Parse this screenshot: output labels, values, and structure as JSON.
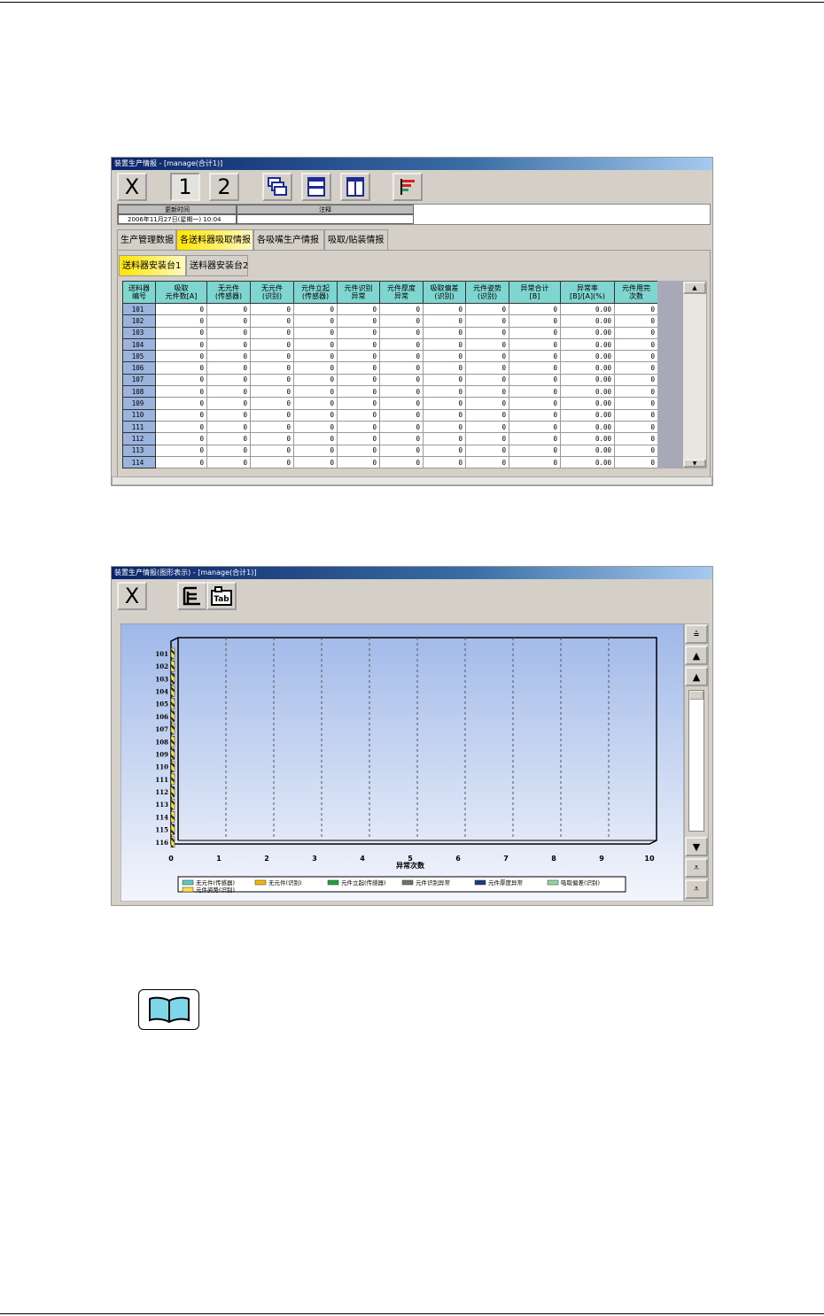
{
  "window1": {
    "title": "装置生产情报 - [manage(合计1)]",
    "toolbar": {
      "close": "X",
      "page1": "1",
      "page2": "2"
    },
    "info": {
      "update_time_label": "更新时间",
      "update_time_value": "2006年11月27日(星期一) 10:04",
      "note_label": "注释"
    },
    "tabs": [
      "生产管理数据",
      "各送料器吸取情报",
      "各吸嘴生产情报",
      "吸取/贴装情报"
    ],
    "active_tab": 1,
    "subtabs": [
      "送料器安装台1",
      "送料器安装台2"
    ],
    "active_subtab": 0,
    "columns": [
      [
        "送料器",
        "编号"
      ],
      [
        "吸取",
        "元件数[A]"
      ],
      [
        "无元件",
        "(传感器)"
      ],
      [
        "无元件",
        "(识别)"
      ],
      [
        "元件立起",
        "(传感器)"
      ],
      [
        "元件识别",
        "异常"
      ],
      [
        "元件厚度",
        "异常"
      ],
      [
        "吸取偏差",
        "(识别)"
      ],
      [
        "元件姿势",
        "(识别)"
      ],
      [
        "异常合计",
        "[B]"
      ],
      [
        "异常率",
        "[B]/[A](%)"
      ],
      [
        "元件用完",
        "次数"
      ]
    ],
    "rows": [
      [
        "101",
        "0",
        "0",
        "0",
        "0",
        "0",
        "0",
        "0",
        "0",
        "0",
        "0.00",
        "0"
      ],
      [
        "102",
        "0",
        "0",
        "0",
        "0",
        "0",
        "0",
        "0",
        "0",
        "0",
        "0.00",
        "0"
      ],
      [
        "103",
        "0",
        "0",
        "0",
        "0",
        "0",
        "0",
        "0",
        "0",
        "0",
        "0.00",
        "0"
      ],
      [
        "104",
        "0",
        "0",
        "0",
        "0",
        "0",
        "0",
        "0",
        "0",
        "0",
        "0.00",
        "0"
      ],
      [
        "105",
        "0",
        "0",
        "0",
        "0",
        "0",
        "0",
        "0",
        "0",
        "0",
        "0.00",
        "0"
      ],
      [
        "106",
        "0",
        "0",
        "0",
        "0",
        "0",
        "0",
        "0",
        "0",
        "0",
        "0.00",
        "0"
      ],
      [
        "107",
        "0",
        "0",
        "0",
        "0",
        "0",
        "0",
        "0",
        "0",
        "0",
        "0.00",
        "0"
      ],
      [
        "108",
        "0",
        "0",
        "0",
        "0",
        "0",
        "0",
        "0",
        "0",
        "0",
        "0.00",
        "0"
      ],
      [
        "109",
        "0",
        "0",
        "0",
        "0",
        "0",
        "0",
        "0",
        "0",
        "0",
        "0.00",
        "0"
      ],
      [
        "110",
        "0",
        "0",
        "0",
        "0",
        "0",
        "0",
        "0",
        "0",
        "0",
        "0.00",
        "0"
      ],
      [
        "111",
        "0",
        "0",
        "0",
        "0",
        "0",
        "0",
        "0",
        "0",
        "0",
        "0.00",
        "0"
      ],
      [
        "112",
        "0",
        "0",
        "0",
        "0",
        "0",
        "0",
        "0",
        "0",
        "0",
        "0.00",
        "0"
      ],
      [
        "113",
        "0",
        "0",
        "0",
        "0",
        "0",
        "0",
        "0",
        "0",
        "0",
        "0.00",
        "0"
      ],
      [
        "114",
        "0",
        "0",
        "0",
        "0",
        "0",
        "0",
        "0",
        "0",
        "0",
        "0.00",
        "0"
      ]
    ]
  },
  "window2": {
    "title": "装置生产情报(图形表示) - [manage(合计1)]",
    "toolbar": {
      "close": "X",
      "tab_icon_text": "Tab"
    }
  },
  "chart_data": {
    "type": "bar",
    "orientation": "horizontal",
    "stacked": true,
    "categories": [
      "101",
      "102",
      "103",
      "104",
      "105",
      "106",
      "107",
      "108",
      "109",
      "110",
      "111",
      "112",
      "113",
      "114",
      "115",
      "116"
    ],
    "xlabel": "异常次数",
    "xlim": [
      0,
      10
    ],
    "xticks": [
      "0",
      "1",
      "2",
      "3",
      "4",
      "5",
      "6",
      "7",
      "8",
      "9",
      "10"
    ],
    "grid": true,
    "legend": "bottom",
    "series": [
      {
        "name": "无元件(传感器)",
        "color": "#5fc8c0",
        "values": [
          0,
          0,
          0,
          0,
          0,
          0,
          0,
          0,
          0,
          0,
          0,
          0,
          0,
          0,
          0,
          0
        ]
      },
      {
        "name": "无元件(识别)",
        "color": "#f0b800",
        "values": [
          0,
          0,
          0,
          0,
          0,
          0,
          0,
          0,
          0,
          0,
          0,
          0,
          0,
          0,
          0,
          0
        ]
      },
      {
        "name": "元件立起(传感器)",
        "color": "#20a040",
        "values": [
          0,
          0,
          0,
          0,
          0,
          0,
          0,
          0,
          0,
          0,
          0,
          0,
          0,
          0,
          0,
          0
        ]
      },
      {
        "name": "元件识别异常",
        "color": "#707070",
        "values": [
          0,
          0,
          0,
          0,
          0,
          0,
          0,
          0,
          0,
          0,
          0,
          0,
          0,
          0,
          0,
          0
        ]
      },
      {
        "name": "元件厚度异常",
        "color": "#1a3c80",
        "values": [
          0,
          0,
          0,
          0,
          0,
          0,
          0,
          0,
          0,
          0,
          0,
          0,
          0,
          0,
          0,
          0
        ]
      },
      {
        "name": "吸取偏差(识别)",
        "color": "#90d8a0",
        "values": [
          0,
          0,
          0,
          0,
          0,
          0,
          0,
          0,
          0,
          0,
          0,
          0,
          0,
          0,
          0,
          0
        ]
      },
      {
        "name": "元件姿势(识别)",
        "color": "#f8e040",
        "values": [
          0,
          0,
          0,
          0,
          0,
          0,
          0,
          0,
          0,
          0,
          0,
          0,
          0,
          0,
          0,
          0
        ]
      }
    ]
  }
}
